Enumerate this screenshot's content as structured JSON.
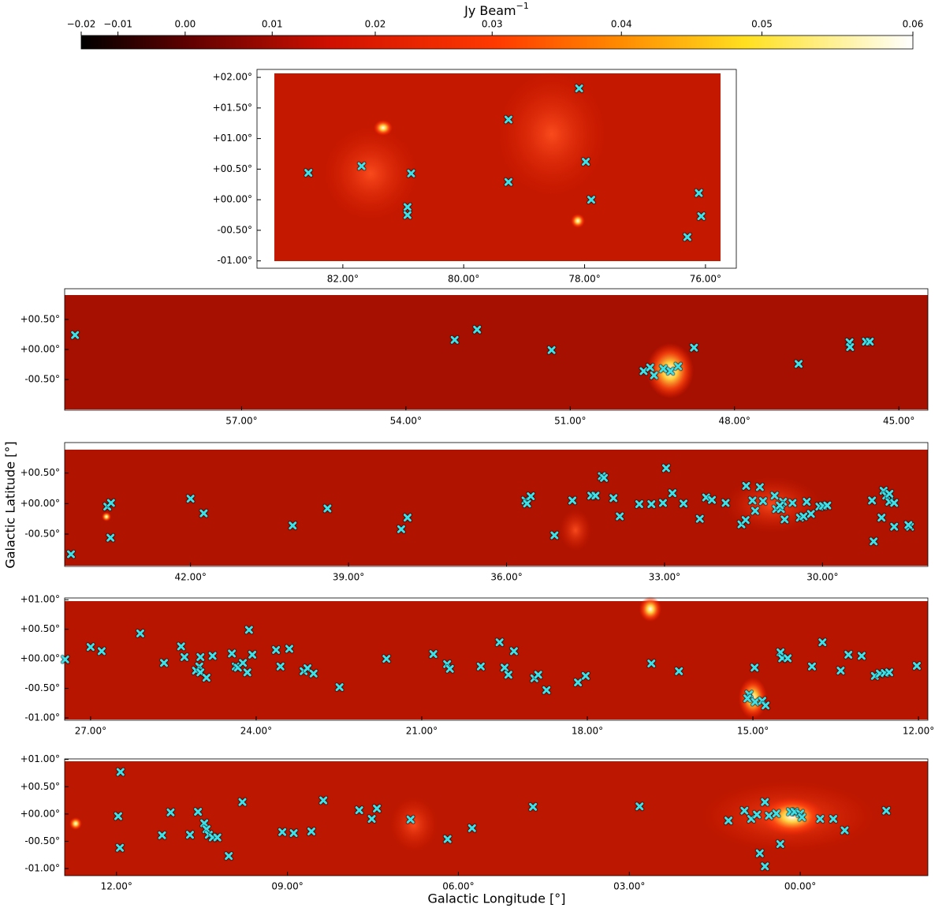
{
  "chart_data": {
    "type": "scatter",
    "marker_color": "#40e0e8",
    "x_label": "Galactic Longitude [°]",
    "y_label": "Galactic Latitude [°]",
    "colorbar": {
      "label": "Jy Beam",
      "label_exponent": "−1",
      "lim": [
        -0.02,
        0.06
      ],
      "scale": "power",
      "power": 1.5,
      "ticks": [
        {
          "value": -0.02,
          "label": "−0.02"
        },
        {
          "value": -0.01,
          "label": "−0.01"
        },
        {
          "value": 0,
          "label": "0.00"
        },
        0.01,
        0.02,
        0.03,
        0.04,
        0.05,
        0.06
      ]
    },
    "panels": [
      {
        "xlim": [
          83.42,
          75.49
        ],
        "ylim": [
          -1.12,
          2.13
        ],
        "xticks": [
          {
            "value": 82,
            "label": "82.00°"
          },
          {
            "value": 80,
            "label": "80.00°"
          },
          {
            "value": 78,
            "label": "78.00°"
          },
          {
            "value": 76,
            "label": "76.00°"
          }
        ],
        "yticks": [
          {
            "value": 2,
            "label": "+02.00°"
          },
          {
            "value": 1.5,
            "label": "+01.50°"
          },
          {
            "value": 1,
            "label": "+01.00°"
          },
          {
            "value": 0.5,
            "label": "+00.50°"
          },
          {
            "value": 0,
            "label": "+00.00°"
          },
          {
            "value": -0.5,
            "label": "-00.50°"
          },
          {
            "value": -1,
            "label": "-01.00°"
          }
        ],
        "x": [
          82.57,
          81.69,
          80.87,
          80.93,
          80.93,
          79.26,
          79.26,
          78.09,
          77.98,
          77.89,
          76.11,
          76.07,
          76.3
        ],
        "y": [
          0.44,
          0.55,
          0.43,
          -0.12,
          -0.25,
          1.31,
          0.29,
          1.82,
          0.62,
          0.0,
          0.11,
          -0.27,
          -0.61
        ]
      },
      {
        "xlim": [
          60.23,
          44.47
        ],
        "ylim": [
          -1.01,
          1.01
        ],
        "xticks": [
          {
            "value": 57,
            "label": "57.00°"
          },
          {
            "value": 54,
            "label": "54.00°"
          },
          {
            "value": 51,
            "label": "51.00°"
          },
          {
            "value": 48,
            "label": "48.00°"
          },
          {
            "value": 45,
            "label": "45.00°"
          }
        ],
        "yticks": [
          {
            "value": 0.5,
            "label": "+00.50°"
          },
          {
            "value": 0,
            "label": "+00.00°"
          },
          {
            "value": -0.5,
            "label": "-00.50°"
          }
        ],
        "x": [
          60.04,
          53.11,
          52.7,
          51.34,
          49.66,
          49.54,
          49.47,
          49.3,
          49.17,
          49.03,
          48.74,
          46.83,
          45.9,
          45.89,
          45.6,
          45.53
        ],
        "y": [
          0.24,
          0.16,
          0.33,
          -0.01,
          -0.36,
          -0.3,
          -0.43,
          -0.32,
          -0.36,
          -0.28,
          0.03,
          -0.24,
          0.12,
          0.04,
          0.13,
          0.13
        ]
      },
      {
        "xlim": [
          44.39,
          28.0
        ],
        "ylim": [
          -1.03,
          1.0
        ],
        "xticks": [
          {
            "value": 42,
            "label": "42.00°"
          },
          {
            "value": 39,
            "label": "39.00°"
          },
          {
            "value": 36,
            "label": "36.00°"
          },
          {
            "value": 33,
            "label": "33.00°"
          },
          {
            "value": 30,
            "label": "30.00°"
          }
        ],
        "yticks": [
          {
            "value": 0.5,
            "label": "+00.50°"
          },
          {
            "value": 0,
            "label": "+00.00°"
          },
          {
            "value": -0.5,
            "label": "-00.50°"
          }
        ],
        "x": [
          44.27,
          43.58,
          43.51,
          43.52,
          42.0,
          41.75,
          40.06,
          39.4,
          38.0,
          37.88,
          35.64,
          35.61,
          35.54,
          35.09,
          34.75,
          34.19,
          34.15,
          34.39,
          34.31,
          33.97,
          33.85,
          33.48,
          33.25,
          33.03,
          32.97,
          32.85,
          32.64,
          32.33,
          32.21,
          32.1,
          31.84,
          31.54,
          31.46,
          31.45,
          31.33,
          31.28,
          31.19,
          31.13,
          30.91,
          30.88,
          30.79,
          30.75,
          30.81,
          30.72,
          30.57,
          30.43,
          30.36,
          30.3,
          30.22,
          30.06,
          29.99,
          29.91,
          29.06,
          28.88,
          28.84,
          28.79,
          28.73,
          28.64,
          28.73,
          28.64,
          29.03,
          28.34,
          28.37
        ],
        "y": [
          -0.83,
          -0.05,
          0.01,
          -0.56,
          0.08,
          -0.16,
          -0.36,
          -0.08,
          -0.42,
          -0.23,
          0.05,
          0.0,
          0.12,
          -0.52,
          0.05,
          0.45,
          0.42,
          0.13,
          0.13,
          0.09,
          -0.21,
          -0.01,
          -0.01,
          0.01,
          0.58,
          0.17,
          0.0,
          -0.25,
          0.1,
          0.06,
          0.01,
          -0.34,
          -0.27,
          0.29,
          0.05,
          -0.12,
          0.27,
          0.04,
          0.13,
          -0.09,
          -0.09,
          0.03,
          -0.03,
          -0.26,
          0.01,
          -0.23,
          -0.21,
          0.03,
          -0.17,
          -0.05,
          -0.04,
          -0.03,
          0.05,
          -0.23,
          0.21,
          0.13,
          0.03,
          0.01,
          0.16,
          -0.38,
          -0.62,
          -0.38,
          -0.35
        ]
      },
      {
        "xlim": [
          27.47,
          11.83
        ],
        "ylim": [
          -1.04,
          1.03
        ],
        "xticks": [
          {
            "value": 27,
            "label": "27.00°"
          },
          {
            "value": 24,
            "label": "24.00°"
          },
          {
            "value": 21,
            "label": "21.00°"
          },
          {
            "value": 18,
            "label": "18.00°"
          },
          {
            "value": 15,
            "label": "15.00°"
          },
          {
            "value": 12,
            "label": "12.00°"
          }
        ],
        "yticks": [
          {
            "value": 1,
            "label": "+01.00°"
          },
          {
            "value": 0.5,
            "label": "+00.50°"
          },
          {
            "value": 0,
            "label": "+00.00°"
          },
          {
            "value": -0.5,
            "label": "-00.50°"
          },
          {
            "value": -1,
            "label": "-01.00°"
          }
        ],
        "x": [
          27.46,
          27.0,
          26.8,
          26.1,
          25.67,
          25.36,
          25.3,
          25.03,
          25.01,
          25.09,
          25.01,
          24.9,
          24.79,
          24.44,
          24.37,
          24.33,
          24.24,
          24.16,
          24.13,
          24.07,
          23.64,
          23.56,
          23.4,
          23.14,
          23.07,
          22.96,
          22.49,
          21.64,
          20.79,
          20.54,
          20.49,
          19.93,
          19.59,
          19.5,
          19.43,
          19.33,
          18.96,
          18.89,
          18.74,
          18.17,
          18.03,
          16.84,
          16.34,
          14.97,
          15.07,
          15.1,
          14.96,
          14.83,
          14.77,
          14.5,
          14.47,
          14.37,
          13.74,
          13.93,
          13.41,
          13.27,
          13.03,
          12.79,
          12.7,
          12.61,
          12.53,
          12.03
        ],
        "y": [
          -0.01,
          0.2,
          0.13,
          0.43,
          -0.07,
          0.21,
          0.03,
          -0.13,
          0.03,
          -0.2,
          -0.23,
          -0.32,
          0.05,
          0.09,
          -0.13,
          -0.15,
          -0.07,
          -0.23,
          0.49,
          0.07,
          0.15,
          -0.13,
          0.17,
          -0.21,
          -0.16,
          -0.25,
          -0.48,
          0.0,
          0.08,
          -0.09,
          -0.17,
          -0.13,
          0.28,
          -0.15,
          -0.27,
          0.13,
          -0.33,
          -0.27,
          -0.53,
          -0.4,
          -0.29,
          -0.08,
          -0.21,
          -0.15,
          -0.6,
          -0.67,
          -0.73,
          -0.71,
          -0.79,
          0.11,
          0.01,
          0.01,
          0.28,
          -0.13,
          -0.2,
          0.07,
          0.05,
          -0.29,
          -0.25,
          -0.24,
          -0.23,
          -0.12
        ]
      },
      {
        "xlim": [
          12.91,
          -2.24
        ],
        "ylim": [
          -1.13,
          1.01
        ],
        "xticks": [
          {
            "value": 12,
            "label": "12.00°"
          },
          {
            "value": 9,
            "label": "09.00°"
          },
          {
            "value": 6,
            "label": "06.00°"
          },
          {
            "value": 3,
            "label": "03.00°"
          },
          {
            "value": 0,
            "label": "00.00°"
          }
        ],
        "yticks": [
          {
            "value": 1,
            "label": "+01.00°"
          },
          {
            "value": 0.5,
            "label": "+00.50°"
          },
          {
            "value": 0,
            "label": "+00.00°"
          },
          {
            "value": -0.5,
            "label": "-00.50°"
          },
          {
            "value": -1,
            "label": "-01.00°"
          }
        ],
        "x": [
          11.93,
          11.97,
          11.94,
          11.2,
          11.05,
          10.71,
          10.57,
          10.46,
          10.42,
          10.38,
          10.31,
          10.23,
          10.03,
          9.79,
          9.09,
          8.89,
          8.58,
          8.37,
          7.74,
          7.52,
          7.43,
          6.84,
          6.19,
          5.76,
          4.69,
          2.82,
          1.26,
          0.98,
          0.86,
          0.76,
          0.62,
          0.55,
          0.71,
          0.62,
          0.35,
          0.42,
          0.17,
          0.1,
          0.0,
          -0.03,
          -0.35,
          -0.58,
          -0.78,
          -1.51
        ],
        "y": [
          0.77,
          -0.04,
          -0.62,
          -0.39,
          0.03,
          -0.38,
          0.04,
          -0.17,
          -0.28,
          -0.38,
          -0.43,
          -0.43,
          -0.77,
          0.22,
          -0.33,
          -0.35,
          -0.32,
          0.25,
          0.07,
          -0.09,
          0.1,
          -0.1,
          -0.46,
          -0.26,
          0.13,
          0.14,
          -0.12,
          0.06,
          -0.09,
          -0.01,
          0.22,
          -0.03,
          -0.72,
          -0.96,
          -0.55,
          0.01,
          0.04,
          0.04,
          0.01,
          -0.06,
          -0.09,
          -0.09,
          -0.3,
          0.06
        ]
      }
    ]
  }
}
